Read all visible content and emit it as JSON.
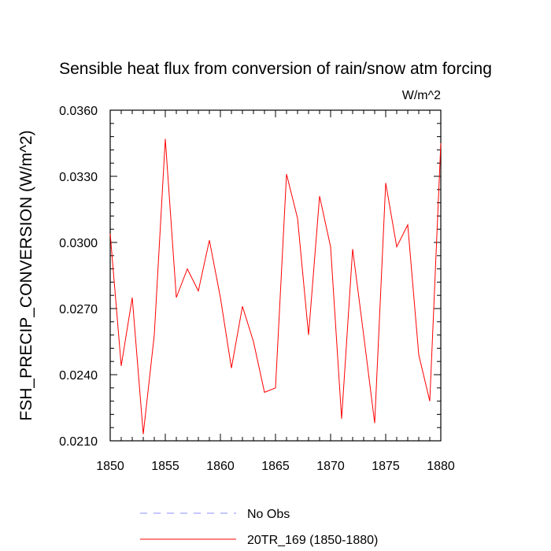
{
  "chart_data": {
    "type": "line",
    "title": "Sensible heat flux from conversion of rain/snow atm forcing",
    "units_label": "W/m^2",
    "xlabel": "",
    "ylabel": "FSH_PRECIP_CONVERSION  (W/m^2)",
    "xlim": [
      1850,
      1880
    ],
    "ylim": [
      0.021,
      0.036
    ],
    "x_ticks": [
      1850,
      1855,
      1860,
      1865,
      1870,
      1875,
      1880
    ],
    "x_tick_labels": [
      "1850",
      "1855",
      "1860",
      "1865",
      "1870",
      "1875",
      "1880"
    ],
    "y_ticks": [
      0.021,
      0.024,
      0.027,
      0.03,
      0.033,
      0.036
    ],
    "y_tick_labels": [
      "0.0210",
      "0.0240",
      "0.0270",
      "0.0300",
      "0.0330",
      "0.0360"
    ],
    "series": [
      {
        "name": "20TR_169 (1850-1880)",
        "color": "#ff0000",
        "style": "solid",
        "x": [
          1850,
          1851,
          1852,
          1853,
          1854,
          1855,
          1856,
          1857,
          1858,
          1859,
          1860,
          1861,
          1862,
          1863,
          1864,
          1865,
          1866,
          1867,
          1868,
          1869,
          1870,
          1871,
          1872,
          1873,
          1874,
          1875,
          1876,
          1877,
          1878,
          1879,
          1880
        ],
        "values": [
          0.0304,
          0.0244,
          0.0275,
          0.0213,
          0.0258,
          0.0347,
          0.0275,
          0.0288,
          0.0278,
          0.0301,
          0.0275,
          0.0243,
          0.0271,
          0.0255,
          0.0232,
          0.0234,
          0.0331,
          0.0311,
          0.0258,
          0.0321,
          0.0298,
          0.022,
          0.0297,
          0.0258,
          0.0218,
          0.0327,
          0.0298,
          0.0308,
          0.0249,
          0.0228,
          0.0345
        ]
      }
    ],
    "legend": {
      "placement": "bottom",
      "entries": [
        {
          "label": "No Obs",
          "color": "#8c8cff",
          "style": "dashed"
        },
        {
          "label": "20TR_169 (1850-1880)",
          "color": "#ff0000",
          "style": "solid"
        }
      ]
    }
  }
}
